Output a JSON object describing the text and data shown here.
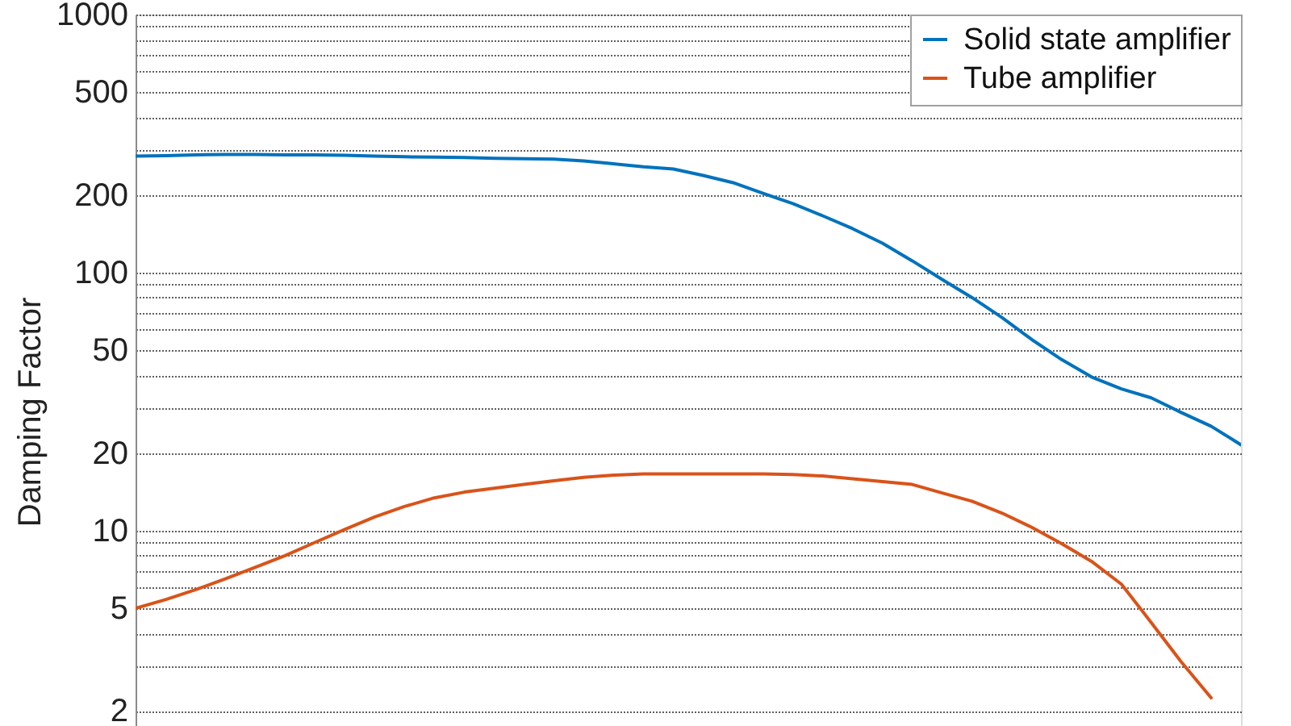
{
  "chart_data": {
    "type": "line",
    "ylabel": "Damping Factor",
    "categories": [
      null,
      null,
      null,
      null,
      null,
      null,
      null,
      null,
      null,
      null,
      null,
      null,
      null,
      null,
      null,
      null,
      null,
      null,
      null,
      null,
      null,
      null,
      null,
      null,
      null,
      null,
      null,
      null,
      null,
      null,
      null,
      null,
      null,
      null,
      null,
      null,
      null,
      null
    ],
    "series": [
      {
        "name": "Solid state amplifier",
        "color": "#0072bd",
        "values": [
          283,
          284,
          286,
          287,
          287,
          286,
          286,
          285,
          283,
          281,
          280,
          279,
          277,
          276,
          275,
          271,
          264,
          257,
          252,
          238,
          223,
          203,
          185,
          166,
          148,
          130,
          111,
          94,
          80,
          67,
          55,
          46,
          39.4,
          35.4,
          32.7,
          28.7,
          25.4,
          21.5
        ]
      },
      {
        "name": "Tube amplifier",
        "color": "#d95319",
        "values": [
          5.0,
          5.4,
          5.9,
          6.5,
          7.2,
          8.0,
          9.0,
          10.1,
          11.3,
          12.4,
          13.4,
          14.1,
          14.6,
          15.1,
          15.6,
          16.1,
          16.4,
          16.6,
          16.6,
          16.6,
          16.6,
          16.6,
          16.5,
          16.3,
          15.9,
          15.5,
          15.1,
          14.0,
          13.0,
          11.7,
          10.3,
          8.9,
          7.6,
          6.2,
          4.4,
          3.1,
          2.25,
          null
        ]
      }
    ],
    "ylim": [
      1.75,
      1000
    ],
    "yticks": [
      2,
      {
        "value": 3,
        "label": null
      },
      {
        "value": 4,
        "label": null
      },
      5,
      {
        "value": 6,
        "label": null
      },
      {
        "value": 7,
        "label": null
      },
      {
        "value": 8,
        "label": null
      },
      {
        "value": 9,
        "label": null
      },
      10,
      20,
      {
        "value": 30,
        "label": null
      },
      {
        "value": 40,
        "label": null
      },
      50,
      {
        "value": 60,
        "label": null
      },
      {
        "value": 70,
        "label": null
      },
      {
        "value": 80,
        "label": null
      },
      {
        "value": 90,
        "label": null
      },
      100,
      200,
      {
        "value": 300,
        "label": null
      },
      {
        "value": 400,
        "label": null
      },
      500,
      {
        "value": 600,
        "label": null
      },
      {
        "value": 700,
        "label": null
      },
      {
        "value": 800,
        "label": null
      },
      {
        "value": 900,
        "label": null
      },
      1000
    ],
    "log": "y",
    "grid": "y",
    "legend": "top right",
    "tick_labels": "y"
  }
}
